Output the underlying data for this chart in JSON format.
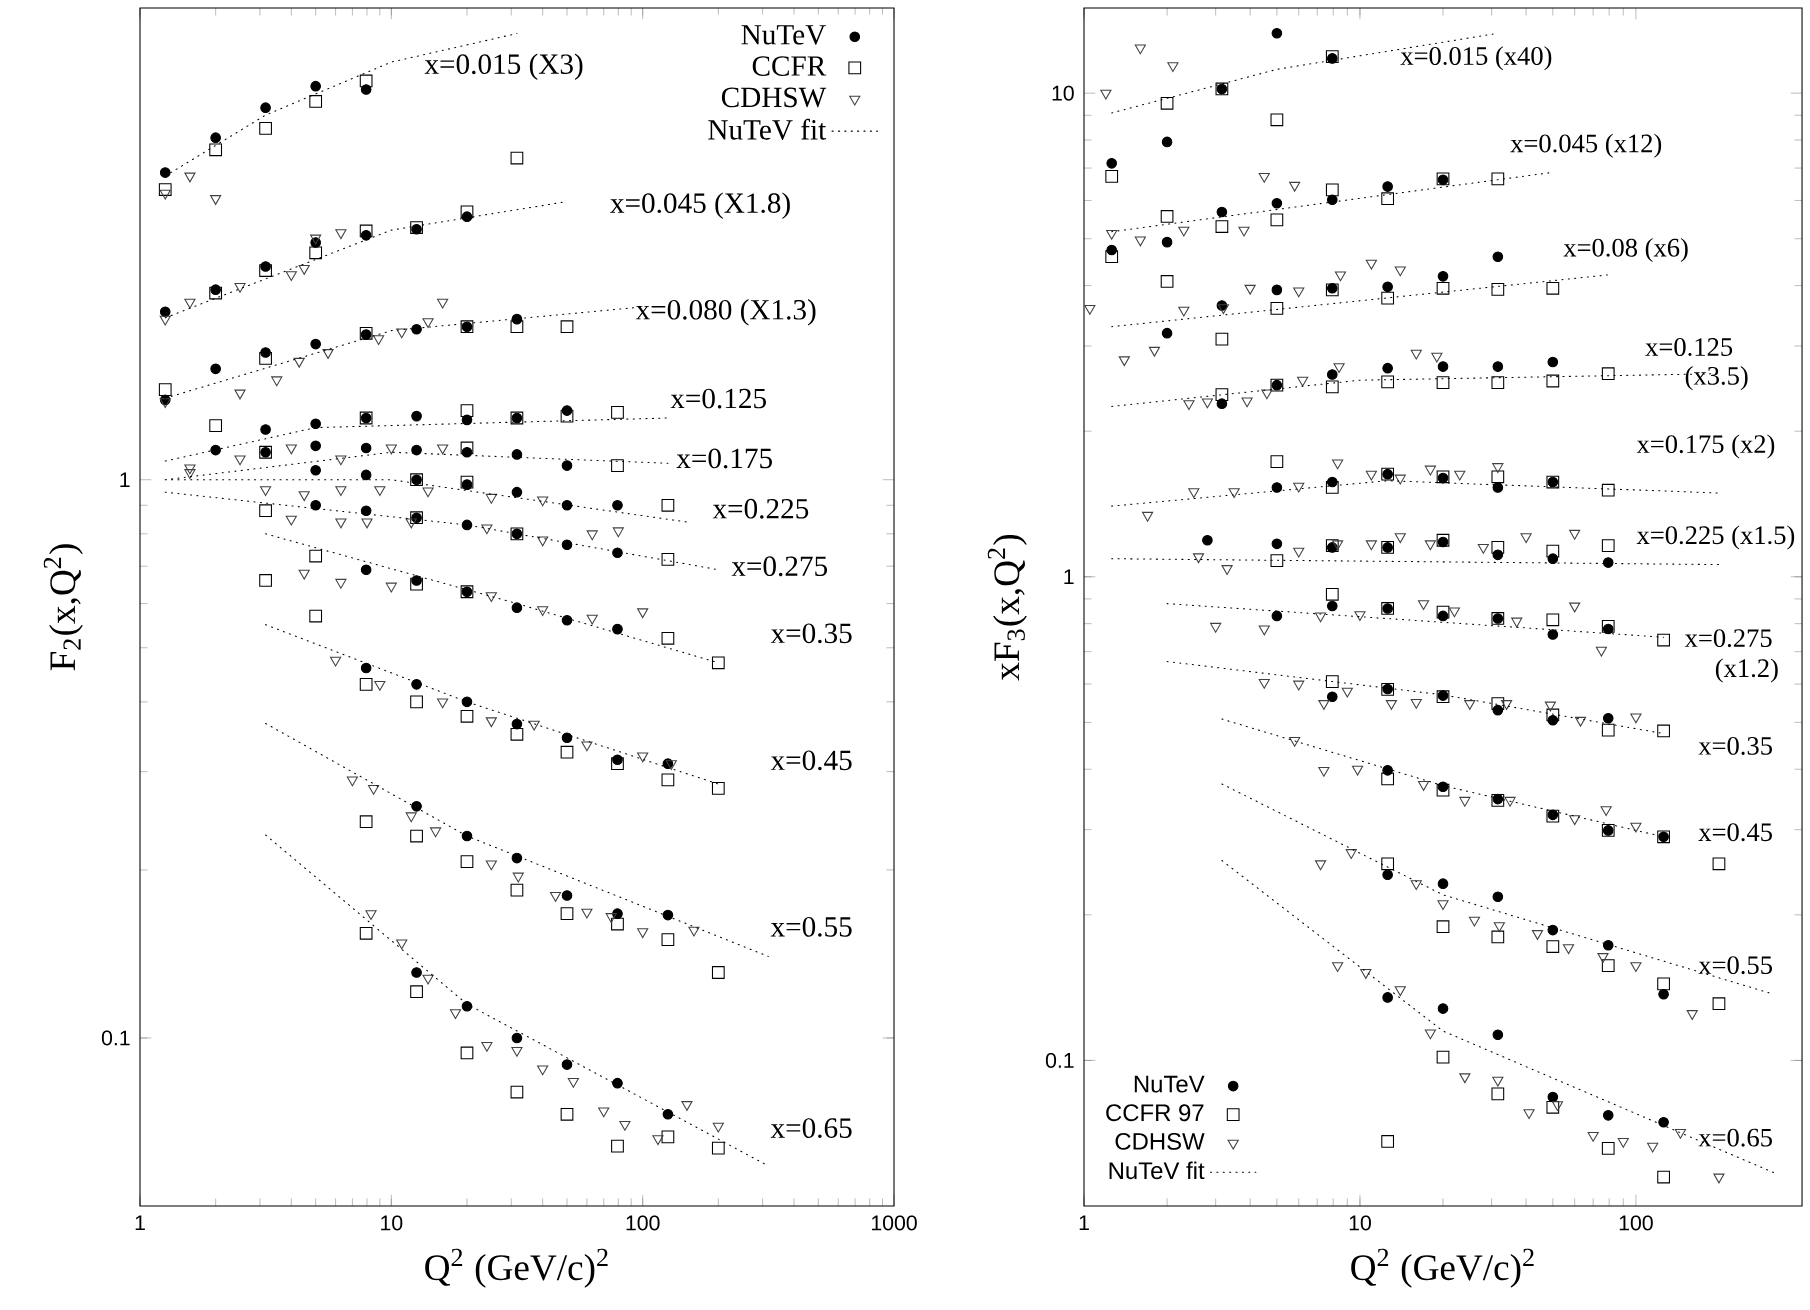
{
  "chart_data": [
    {
      "type": "scatter",
      "xlabel": "Q$^{2}$ (GeV/c)$^{2}$",
      "ylabel": "F$_{2}$(x,Q$^{2}$)",
      "log": "xy",
      "xlim": [
        1,
        1000
      ],
      "ylim": [
        0.05,
        7
      ],
      "xticks": [
        1,
        10,
        100,
        1000
      ],
      "yticks": [
        0.1,
        1
      ],
      "legend": "top right",
      "series": [
        {
          "name": "NuTeV",
          "marker": "circle",
          "color": "#000000",
          "x": [
            1.26,
            2,
            3.16,
            5,
            7.94,
            1.26,
            2,
            3.16,
            5,
            7.94,
            12.6,
            20,
            1.26,
            2,
            3.16,
            5,
            7.94,
            12.6,
            20,
            31.6,
            3.16,
            5,
            7.94,
            12.6,
            20,
            31.6,
            50,
            2,
            3.16,
            5,
            7.94,
            12.6,
            20,
            31.6,
            50,
            5,
            7.94,
            12.6,
            20,
            31.6,
            50,
            79.4,
            5,
            7.94,
            12.6,
            20,
            31.6,
            50,
            79.4,
            7.94,
            12.6,
            20,
            31.6,
            50,
            79.4,
            7.94,
            12.6,
            20,
            31.6,
            50,
            79.4,
            126,
            12.6,
            20,
            31.6,
            50,
            79.4,
            126,
            12.6,
            20,
            31.6,
            50,
            79.4,
            126
          ],
          "values": [
            3.55,
            4.1,
            4.64,
            5.07,
            5.0,
            2.0,
            2.19,
            2.41,
            2.66,
            2.74,
            2.81,
            2.96,
            1.39,
            1.58,
            1.69,
            1.75,
            1.82,
            1.86,
            1.88,
            1.94,
            1.23,
            1.26,
            1.29,
            1.3,
            1.28,
            1.29,
            1.33,
            1.13,
            1.12,
            1.15,
            1.14,
            1.13,
            1.12,
            1.11,
            1.06,
            1.04,
            1.02,
            1.0,
            0.98,
            0.95,
            0.9,
            0.9,
            0.9,
            0.88,
            0.855,
            0.83,
            0.8,
            0.765,
            0.74,
            0.69,
            0.66,
            0.63,
            0.59,
            0.56,
            0.54,
            0.46,
            0.43,
            0.4,
            0.365,
            0.345,
            0.315,
            0.31,
            0.26,
            0.23,
            0.21,
            0.18,
            0.167,
            0.166,
            0.131,
            0.114,
            0.1,
            0.0896,
            0.083,
            0.073
          ]
        },
        {
          "name": "CCFR",
          "marker": "square",
          "color": "#000000",
          "x": [
            1.26,
            2,
            3.16,
            5,
            7.94,
            31.6,
            2,
            3.16,
            5,
            7.94,
            12.6,
            20,
            1.26,
            3.16,
            7.94,
            20,
            31.6,
            50,
            2,
            7.94,
            20,
            31.6,
            50,
            79.4,
            3.16,
            20,
            79.4,
            3.16,
            12.6,
            20,
            126,
            3.16,
            12.6,
            31.6,
            126,
            5,
            5,
            12.6,
            20,
            126,
            200,
            7.94,
            12.6,
            20,
            31.6,
            50,
            79.4,
            126,
            200,
            7.94,
            12.6,
            20,
            31.6,
            50,
            79.4,
            126,
            200,
            7.94,
            12.6,
            20,
            31.6,
            50,
            79.4,
            126,
            200
          ],
          "values": [
            3.31,
            3.9,
            4.26,
            4.76,
            5.18,
            3.77,
            2.16,
            2.37,
            2.55,
            2.79,
            2.83,
            3.02,
            1.45,
            1.65,
            1.83,
            1.88,
            1.88,
            1.88,
            1.25,
            1.29,
            1.33,
            1.29,
            1.3,
            1.32,
            1.12,
            1.14,
            1.06,
            0.88,
            1.0,
            0.99,
            0.9,
            0.66,
            0.855,
            0.8,
            0.72,
            0.73,
            0.57,
            0.65,
            0.63,
            0.52,
            0.47,
            0.43,
            0.4,
            0.377,
            0.35,
            0.325,
            0.31,
            0.29,
            0.28,
            0.244,
            0.23,
            0.207,
            0.184,
            0.167,
            0.16,
            0.15,
            0.131,
            0.154,
            0.121,
            0.094,
            0.08,
            0.073,
            0.064,
            0.0665,
            0.0635
          ]
        },
        {
          "name": "CDHSW",
          "marker": "triangle",
          "color": "#404040",
          "x": [
            1.26,
            1.58,
            2,
            1.26,
            1.58,
            2.5,
            4,
            4.5,
            5,
            6.3,
            1.26,
            2.5,
            3.5,
            4.3,
            5.6,
            8.9,
            11,
            14,
            16,
            1.58,
            2.5,
            4,
            6.3,
            10,
            16,
            1.58,
            3.16,
            4.5,
            6.3,
            9,
            14,
            25,
            40,
            4,
            6.3,
            8,
            12,
            24,
            40,
            63,
            80,
            4.5,
            6.3,
            10,
            25,
            40,
            63,
            100,
            6,
            9,
            16,
            25,
            37,
            60,
            100,
            130,
            7,
            8.5,
            12,
            15,
            25,
            32,
            45,
            60,
            75,
            100,
            160,
            8.3,
            11,
            14,
            18,
            24,
            31.6,
            40,
            53,
            70,
            85,
            115,
            150,
            200
          ],
          "values": [
            3.26,
            3.5,
            3.19,
            1.94,
            2.08,
            2.22,
            2.33,
            2.39,
            2.71,
            2.77,
            1.38,
            1.43,
            1.51,
            1.63,
            1.69,
            1.79,
            1.84,
            1.92,
            2.08,
            1.05,
            1.09,
            1.14,
            1.09,
            1.14,
            1.14,
            1.03,
            0.96,
            0.94,
            0.96,
            0.96,
            0.955,
            0.93,
            0.92,
            0.85,
            0.84,
            0.84,
            0.84,
            0.82,
            0.78,
            0.8,
            0.81,
            0.68,
            0.655,
            0.645,
            0.62,
            0.585,
            0.565,
            0.58,
            0.475,
            0.43,
            0.4,
            0.37,
            0.365,
            0.335,
            0.32,
            0.31,
            0.29,
            0.28,
            0.25,
            0.235,
            0.205,
            0.195,
            0.18,
            0.168,
            0.165,
            0.155,
            0.156,
            0.167,
            0.148,
            0.128,
            0.111,
            0.097,
            0.095,
            0.088,
            0.0836,
            0.074,
            0.07,
            0.066,
            0.076,
            0.0695
          ]
        },
        {
          "name": "NuTeV fit",
          "type": "line",
          "marker": "none",
          "line_style": "dotted",
          "color": "#000000",
          "x": [
            1.26,
            3.16,
            10,
            31.6,
            null,
            1.26,
            10,
            50,
            null,
            1.26,
            10,
            100,
            null,
            1.26,
            5,
            126,
            null,
            1.26,
            10,
            126,
            null,
            1.26,
            10,
            150,
            null,
            1.26,
            20,
            200,
            null,
            3.16,
            31.6,
            200,
            null,
            3.16,
            20,
            200,
            null,
            3.16,
            20,
            316,
            null,
            3.16,
            20,
            316
          ],
          "values": [
            3.5,
            4.5,
            5.6,
            6.3,
            null,
            1.95,
            2.8,
            3.15,
            null,
            1.4,
            1.85,
            2.04,
            null,
            1.08,
            1.24,
            1.29,
            null,
            1.0,
            1.12,
            1.07,
            null,
            1.0,
            1.0,
            0.84,
            null,
            0.95,
            0.83,
            0.69,
            null,
            0.8,
            0.6,
            0.47,
            null,
            0.55,
            0.4,
            0.285,
            null,
            0.366,
            0.23,
            0.14,
            null,
            0.231,
            0.115,
            0.059
          ]
        }
      ],
      "annotations": [
        "x=0.015 (X3)",
        "x=0.045 (X1.8)",
        "x=0.080 (X1.3)",
        "x=0.125",
        "x=0.175",
        "x=0.225",
        "x=0.275",
        "x=0.35",
        "x=0.45",
        "x=0.55",
        "x=0.65"
      ]
    },
    {
      "type": "scatter",
      "xlabel": "Q$^{2}$ (GeV/c)$^{2}$",
      "ylabel": "xF$_{3}$(x,Q$^{2}$)",
      "log": "xy",
      "xlim": [
        1,
        400
      ],
      "ylim": [
        0.05,
        15
      ],
      "xticks": [
        1,
        10,
        100
      ],
      "yticks": [
        0.1,
        1,
        10
      ],
      "legend": "bottom left",
      "series": [
        {
          "name": "NuTeV",
          "marker": "circle",
          "color": "#000000",
          "x": [
            1.26,
            2,
            3.16,
            5,
            7.94,
            1.26,
            2,
            3.16,
            5,
            7.94,
            12.6,
            20,
            2,
            3.16,
            5,
            7.94,
            12.6,
            20,
            31.6,
            3.16,
            5,
            7.94,
            12.6,
            20,
            31.6,
            50,
            5,
            7.94,
            12.6,
            20,
            31.6,
            50,
            2.8,
            5,
            7.94,
            12.6,
            20,
            31.6,
            50,
            79.4,
            5,
            7.94,
            12.6,
            20,
            31.6,
            50,
            79.4,
            7.94,
            12.6,
            20,
            31.6,
            50,
            79.4,
            12.6,
            20,
            31.6,
            50,
            79.4,
            126,
            12.6,
            20,
            31.6,
            50,
            79.4,
            126,
            12.6,
            20,
            31.6,
            50,
            79.4,
            126
          ],
          "values": [
            7.16,
            7.93,
            10.2,
            13.3,
            11.8,
            4.74,
            4.92,
            5.68,
            5.92,
            6.02,
            6.41,
            6.62,
            3.19,
            3.64,
            3.92,
            3.95,
            3.98,
            4.18,
            4.59,
            2.28,
            2.49,
            2.62,
            2.7,
            2.72,
            2.72,
            2.78,
            1.53,
            1.57,
            1.63,
            1.6,
            1.53,
            1.57,
            1.19,
            1.17,
            1.15,
            1.15,
            1.18,
            1.11,
            1.09,
            1.07,
            0.83,
            0.87,
            0.86,
            0.83,
            0.82,
            0.76,
            0.78,
            0.565,
            0.586,
            0.568,
            0.53,
            0.505,
            0.51,
            0.398,
            0.368,
            0.347,
            0.322,
            0.299,
            0.29,
            0.242,
            0.232,
            0.218,
            0.186,
            0.173,
            0.137,
            0.135,
            0.128,
            0.113,
            0.084,
            0.077,
            0.0745
          ]
        },
        {
          "name": "CCFR 97",
          "marker": "square",
          "color": "#000000",
          "x": [
            1.26,
            2,
            3.16,
            5,
            7.94,
            1.26,
            2,
            3.16,
            5,
            7.94,
            12.6,
            20,
            31.6,
            2,
            3.16,
            5,
            7.94,
            12.6,
            20,
            31.6,
            50,
            3.16,
            5,
            7.94,
            12.6,
            20,
            31.6,
            50,
            79.4,
            5,
            7.94,
            12.6,
            20,
            31.6,
            50,
            79.4,
            5,
            7.94,
            12.6,
            20,
            31.6,
            50,
            79.4,
            7.94,
            12.6,
            20,
            31.6,
            50,
            79.4,
            126,
            7.94,
            12.6,
            20,
            31.6,
            50,
            79.4,
            126,
            12.6,
            20,
            31.6,
            50,
            79.4,
            126,
            200,
            12.6,
            20,
            31.6,
            50,
            79.4,
            126,
            200,
            12.6,
            20,
            31.6,
            50,
            79.4,
            126
          ],
          "values": [
            6.73,
            9.53,
            10.2,
            8.81,
            11.9,
            4.59,
            5.56,
            5.3,
            5.47,
            6.31,
            6.05,
            6.65,
            6.65,
            4.08,
            3.1,
            3.59,
            3.92,
            3.77,
            3.95,
            3.93,
            3.95,
            2.38,
            2.49,
            2.47,
            2.53,
            2.52,
            2.52,
            2.54,
            2.63,
            1.73,
            1.53,
            1.63,
            1.61,
            1.61,
            1.57,
            1.51,
            1.08,
            1.16,
            1.15,
            1.19,
            1.15,
            1.13,
            1.16,
            0.92,
            0.86,
            0.845,
            0.82,
            0.815,
            0.79,
            0.74,
            0.607,
            0.585,
            0.565,
            0.547,
            0.518,
            0.482,
            0.48,
            0.382,
            0.362,
            0.345,
            0.32,
            0.299,
            0.29,
            0.255,
            0.255,
            0.189,
            0.18,
            0.172,
            0.157,
            0.144,
            0.131,
            0.068,
            0.1016,
            0.0853,
            0.08,
            0.0658,
            0.0574
          ]
        },
        {
          "name": "CDHSW",
          "marker": "triangle",
          "color": "#404040",
          "x": [
            1.2,
            1.6,
            2.1,
            4.5,
            5.8,
            1.26,
            1.6,
            2.3,
            3.8,
            1.05,
            2.3,
            3.2,
            4,
            6,
            8.5,
            11,
            14,
            1.4,
            1.8,
            2.4,
            2.8,
            3.9,
            4.6,
            6.2,
            8.4,
            16,
            19,
            1.7,
            2.5,
            3.5,
            6,
            8.3,
            11,
            14,
            18,
            23,
            31.6,
            2.6,
            3.3,
            6,
            8.3,
            11,
            14,
            18,
            28,
            40,
            60,
            3,
            4.5,
            7.2,
            10,
            17,
            22,
            37,
            60,
            75,
            4.5,
            6,
            7.4,
            9,
            13,
            16,
            25,
            34,
            49,
            63,
            100,
            5.8,
            7.4,
            9.8,
            17,
            24,
            35,
            60,
            78,
            100,
            7.2,
            9.3,
            16,
            20,
            26,
            32,
            44,
            57,
            76,
            100,
            160,
            8.3,
            10.5,
            14,
            18,
            24,
            31.6,
            41,
            52,
            70,
            90,
            115,
            145,
            200
          ],
          "values": [
            10.0,
            12.4,
            11.4,
            6.73,
            6.45,
            5.13,
            4.97,
            5.21,
            5.21,
            3.59,
            3.56,
            3.6,
            3.95,
            3.9,
            4.21,
            4.45,
            4.31,
            2.81,
            2.94,
            2.28,
            2.3,
            2.31,
            2.4,
            2.55,
            2.72,
            2.9,
            2.86,
            1.34,
            1.5,
            1.5,
            1.54,
            1.72,
            1.63,
            1.6,
            1.67,
            1.63,
            1.69,
            1.1,
            1.04,
            1.13,
            1.17,
            1.17,
            1.21,
            1.17,
            1.15,
            1.21,
            1.23,
            0.79,
            0.78,
            0.83,
            0.835,
            0.88,
            0.85,
            0.81,
            0.87,
            0.705,
            0.605,
            0.6,
            0.547,
            0.58,
            0.547,
            0.55,
            0.547,
            0.547,
            0.543,
            0.505,
            0.513,
            0.459,
            0.398,
            0.4,
            0.372,
            0.345,
            0.345,
            0.316,
            0.33,
            0.305,
            0.255,
            0.269,
            0.232,
            0.211,
            0.195,
            0.19,
            0.183,
            0.171,
            0.164,
            0.157,
            0.125,
            0.157,
            0.152,
            0.14,
            0.114,
            0.0925,
            0.091,
            0.078,
            0.081,
            0.07,
            0.068,
            0.0665,
            0.071,
            0.0574
          ]
        },
        {
          "name": "NuTeV fit",
          "type": "line",
          "marker": "none",
          "line_style": "dotted",
          "color": "#000000",
          "x": [
            1.26,
            5,
            31.6,
            null,
            1.26,
            50,
            null,
            1.26,
            79.4,
            null,
            1.26,
            10,
            200,
            null,
            1.26,
            12.6,
            200,
            null,
            1.26,
            200,
            null,
            2,
            126,
            null,
            2,
            20,
            126,
            null,
            3.16,
            20,
            126,
            null,
            3.16,
            20,
            316,
            null,
            3.16,
            20,
            316
          ],
          "values": [
            9.1,
            11.2,
            13.3,
            null,
            5.17,
            6.86,
            null,
            3.29,
            4.21,
            null,
            2.25,
            2.55,
            2.63,
            null,
            1.4,
            1.58,
            1.49,
            null,
            1.09,
            1.06,
            null,
            0.88,
            0.75,
            null,
            0.668,
            0.57,
            0.474,
            null,
            0.508,
            0.37,
            0.29,
            null,
            0.373,
            0.22,
            0.137,
            null,
            0.259,
            0.115,
            0.0586
          ]
        }
      ],
      "annotations": [
        "x=0.015 (x40)",
        "x=0.045 (x12)",
        "x=0.08 (x6)",
        "x=0.125",
        "(x3.5)",
        "x=0.175 (x2)",
        "x=0.225 (x1.5)",
        "x=0.275",
        "(x1.2)",
        "x=0.35",
        "x=0.45",
        "x=0.55",
        "x=0.65"
      ]
    }
  ]
}
